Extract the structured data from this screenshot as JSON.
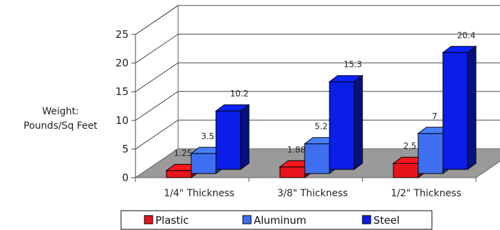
{
  "chart_data": {
    "type": "bar",
    "three_d": true,
    "title": "",
    "ylabel": [
      "Weight:",
      "Pounds/Sq Feet"
    ],
    "xlabel": "",
    "ylim": [
      0,
      25
    ],
    "yticks": [
      0,
      5,
      10,
      15,
      20,
      25
    ],
    "categories": [
      "1/4\" Thickness",
      "3/8\" Thickness",
      "1/2\" Thickness"
    ],
    "series": [
      {
        "name": "Plastic",
        "values": [
          1.25,
          1.88,
          2.5
        ],
        "color": "#e8141b"
      },
      {
        "name": "Aluminum",
        "values": [
          3.5,
          5.2,
          7
        ],
        "color": "#3d6ff0"
      },
      {
        "name": "Steel",
        "values": [
          10.2,
          15.3,
          20.4
        ],
        "color": "#0a1ee8"
      }
    ],
    "legend_position": "bottom",
    "grid": true,
    "floor_color": "#9a9a9a"
  }
}
